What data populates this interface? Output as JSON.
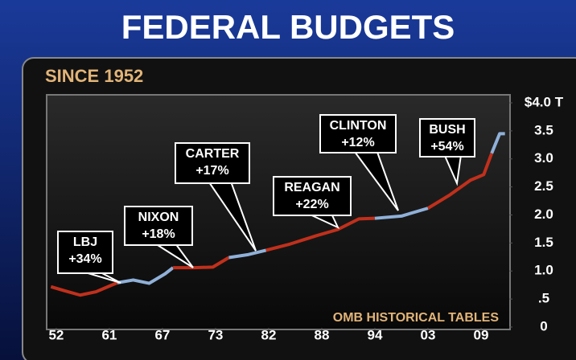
{
  "chart_data": {
    "type": "line",
    "title": "FEDERAL BUDGETS",
    "subtitle": "SINCE 1952",
    "source": "OMB HISTORICAL TABLES",
    "xlim": [
      -0.15,
      8.5
    ],
    "xticks": [
      {
        "value": 0,
        "label": "52"
      },
      {
        "value": 1,
        "label": "61"
      },
      {
        "value": 2,
        "label": "67"
      },
      {
        "value": 3,
        "label": "73"
      },
      {
        "value": 4,
        "label": "82"
      },
      {
        "value": 5,
        "label": "88"
      },
      {
        "value": 6,
        "label": "94"
      },
      {
        "value": 7,
        "label": "03"
      },
      {
        "value": 8,
        "label": "09"
      }
    ],
    "ylim": [
      0,
      4
    ],
    "yticks": [
      {
        "value": 4,
        "label": "$4.0 T"
      },
      3.5,
      {
        "value": 3,
        "label": "3.0"
      },
      2.5,
      {
        "value": 2,
        "label": "2.0"
      },
      1.5,
      {
        "value": 1,
        "label": "1.0"
      },
      {
        "value": 0.5,
        "label": ".5"
      },
      0
    ],
    "series": [
      {
        "color": "#c0301c",
        "x": [
          -0.1,
          0.15,
          0.45,
          0.75,
          1.15
        ],
        "values": [
          0.72,
          0.65,
          0.57,
          0.63,
          0.79
        ]
      },
      {
        "color": "#8fb0d8",
        "x": [
          1.15,
          1.45,
          1.75,
          2.05,
          2.2
        ],
        "values": [
          0.79,
          0.84,
          0.78,
          0.95,
          1.06
        ]
      },
      {
        "color": "#c0301c",
        "x": [
          2.2,
          2.6,
          2.95,
          3.25
        ],
        "values": [
          1.06,
          1.06,
          1.07,
          1.24
        ]
      },
      {
        "color": "#8fb0d8",
        "x": [
          3.25,
          3.6,
          3.95
        ],
        "values": [
          1.24,
          1.29,
          1.37
        ]
      },
      {
        "color": "#c0301c",
        "x": [
          3.95,
          4.4,
          4.9,
          5.3,
          5.7,
          6.0
        ],
        "values": [
          1.37,
          1.48,
          1.63,
          1.74,
          1.93,
          1.94
        ]
      },
      {
        "color": "#8fb0d8",
        "x": [
          6.0,
          6.5,
          7.0
        ],
        "values": [
          1.94,
          1.98,
          2.12
        ]
      },
      {
        "color": "#c0301c",
        "x": [
          7.0,
          7.4,
          7.8,
          8.05,
          8.2
        ],
        "values": [
          2.12,
          2.35,
          2.62,
          2.72,
          3.1
        ]
      },
      {
        "color": "#8fb0d8",
        "x": [
          8.2,
          8.35,
          8.45
        ],
        "values": [
          3.1,
          3.45,
          3.45
        ]
      }
    ],
    "annotations": [
      {
        "name": "LBJ",
        "change": "+34%"
      },
      {
        "name": "NIXON",
        "change": "+18%"
      },
      {
        "name": "CARTER",
        "change": "+17%"
      },
      {
        "name": "REAGAN",
        "change": "+22%"
      },
      {
        "name": "CLINTON",
        "change": "+12%"
      },
      {
        "name": "BUSH",
        "change": "+54%"
      }
    ]
  }
}
